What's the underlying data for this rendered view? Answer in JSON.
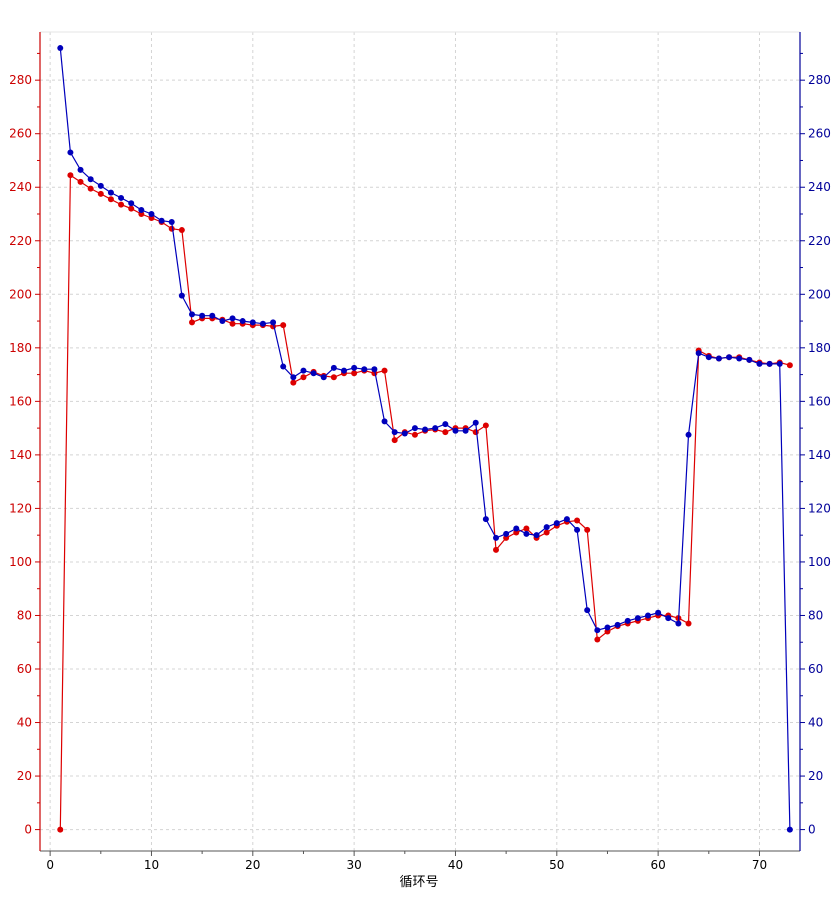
{
  "chart_data": {
    "type": "line",
    "xlabel": "循环号",
    "xlim": [
      -1,
      74
    ],
    "ylim": [
      -8,
      298
    ],
    "x_ticks": [
      0,
      10,
      20,
      30,
      40,
      50,
      60,
      70
    ],
    "y_ticks": [
      0,
      20,
      40,
      60,
      80,
      100,
      120,
      140,
      160,
      180,
      200,
      220,
      240,
      260,
      280
    ],
    "grid": true,
    "colors": {
      "left_axis": "#cc0000",
      "right_axis": "#000099"
    },
    "series": [
      {
        "axis": "left",
        "color": "#dd0000",
        "x": [
          1,
          2,
          3,
          4,
          5,
          6,
          7,
          8,
          9,
          10,
          11,
          12,
          13,
          14,
          15,
          16,
          17,
          18,
          19,
          20,
          21,
          22,
          23,
          24,
          25,
          26,
          27,
          28,
          29,
          30,
          31,
          32,
          33,
          34,
          35,
          36,
          37,
          38,
          39,
          40,
          41,
          42,
          43,
          44,
          45,
          46,
          47,
          48,
          49,
          50,
          51,
          52,
          53,
          54,
          55,
          56,
          57,
          58,
          59,
          60,
          61,
          62,
          63,
          64,
          65,
          66,
          67,
          68,
          69,
          70,
          71,
          72,
          73
        ],
        "y": [
          0,
          244.5,
          242,
          239.5,
          237.5,
          235.5,
          233.5,
          232,
          230,
          228.5,
          227,
          224.5,
          224,
          189.5,
          191,
          191,
          190.5,
          189,
          189,
          188.5,
          188.5,
          188,
          188.5,
          167,
          169,
          171,
          169.5,
          169,
          170.5,
          170.5,
          171.5,
          170.5,
          171.5,
          145.5,
          148.5,
          147.5,
          149,
          149.5,
          148.5,
          150,
          150,
          148.5,
          151,
          104.5,
          109,
          111,
          112.5,
          109,
          111,
          113.5,
          115,
          115.5,
          112,
          71,
          74,
          76,
          77,
          78,
          79,
          80,
          80,
          79,
          77,
          179,
          177,
          176,
          176.5,
          176.5,
          175.5,
          174.5,
          174,
          174.5,
          173.5
        ]
      },
      {
        "axis": "right",
        "color": "#0000bb",
        "x": [
          1,
          2,
          3,
          4,
          5,
          6,
          7,
          8,
          9,
          10,
          11,
          12,
          13,
          14,
          15,
          16,
          17,
          18,
          19,
          20,
          21,
          22,
          23,
          24,
          25,
          26,
          27,
          28,
          29,
          30,
          31,
          32,
          33,
          34,
          35,
          36,
          37,
          38,
          39,
          40,
          41,
          42,
          43,
          44,
          45,
          46,
          47,
          48,
          49,
          50,
          51,
          52,
          53,
          54,
          55,
          56,
          57,
          58,
          59,
          60,
          61,
          62,
          63,
          64,
          65,
          66,
          67,
          68,
          69,
          70,
          71,
          72,
          73
        ],
        "y": [
          292,
          253,
          246.5,
          243,
          240.5,
          238,
          236,
          234,
          231.5,
          230,
          227.5,
          227,
          199.5,
          192.5,
          192,
          192,
          190,
          191,
          190,
          189.5,
          189,
          189.5,
          173,
          169,
          171.5,
          170.5,
          169,
          172.5,
          171.5,
          172.5,
          172,
          172,
          152.5,
          148.5,
          148,
          150,
          149.5,
          150,
          151.5,
          149,
          149,
          152,
          116,
          109,
          110.5,
          112.5,
          110.5,
          110,
          113,
          114.5,
          116,
          112,
          82,
          74.5,
          75.5,
          76.5,
          78,
          79,
          80,
          81,
          79,
          77,
          147.5,
          178,
          176.5,
          176,
          176.5,
          176,
          175.5,
          174,
          174,
          174,
          0
        ]
      }
    ]
  }
}
